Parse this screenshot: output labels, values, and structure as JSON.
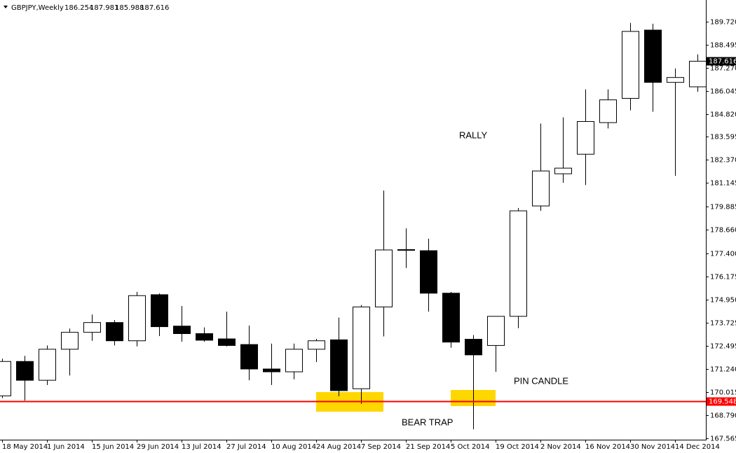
{
  "chart_data": {
    "type": "candlestick",
    "symbol": "GBPJPY,Weekly",
    "header_values": [
      186.254,
      187.981,
      185.988,
      187.616
    ],
    "categories": [
      "18 May 2014",
      null,
      "1 Jun 2014",
      null,
      "15 Jun 2014",
      null,
      "29 Jun 2014",
      null,
      "13 Jul 2014",
      null,
      "27 Jul 2014",
      null,
      "10 Aug 2014",
      null,
      "24 Aug 2014",
      null,
      "7 Sep 2014",
      null,
      "21 Sep 2014",
      null,
      "5 Oct 2014",
      null,
      "19 Oct 2014",
      null,
      "2 Nov 2014",
      null,
      "16 Nov 2014",
      null,
      "30 Nov 2014",
      null,
      "14 Dec 2014",
      null
    ],
    "open": [
      169.82,
      171.65,
      170.65,
      172.3,
      173.2,
      173.72,
      172.75,
      175.2,
      173.53,
      173.13,
      172.85,
      172.55,
      171.25,
      171.1,
      172.3,
      172.8,
      170.2,
      174.55,
      177.56,
      177.54,
      175.28,
      172.83,
      172.5,
      174.05,
      179.92,
      181.63,
      182.67,
      184.35,
      185.64,
      189.27,
      186.49,
      186.254
    ],
    "high": [
      171.8,
      171.95,
      172.5,
      173.4,
      174.15,
      173.85,
      175.35,
      175.27,
      174.6,
      173.46,
      174.3,
      173.56,
      172.6,
      172.6,
      172.85,
      173.98,
      174.65,
      180.74,
      178.73,
      178.18,
      175.35,
      173.05,
      174.05,
      179.81,
      184.3,
      184.63,
      186.12,
      186.12,
      189.65,
      189.61,
      187.23,
      187.981
    ],
    "low": [
      169.7,
      169.57,
      170.4,
      170.9,
      172.75,
      172.5,
      172.45,
      173.0,
      172.7,
      172.7,
      172.45,
      170.65,
      170.4,
      170.7,
      171.62,
      169.8,
      169.4,
      172.98,
      176.62,
      174.3,
      172.38,
      168.04,
      171.1,
      173.42,
      179.66,
      181.15,
      181.03,
      184.04,
      185.0,
      184.93,
      181.52,
      185.988
    ],
    "close": [
      171.65,
      170.65,
      172.3,
      173.2,
      173.72,
      172.75,
      175.15,
      173.5,
      173.13,
      172.78,
      172.5,
      171.25,
      171.1,
      172.3,
      172.75,
      170.1,
      174.55,
      177.58,
      177.6,
      175.28,
      172.68,
      172.0,
      174.05,
      179.66,
      181.78,
      181.93,
      184.41,
      185.56,
      189.2,
      186.49,
      186.75,
      187.616
    ],
    "up_color": "#ffffff",
    "down_color": "#000000",
    "ylim": [
      167.49,
      190.87
    ],
    "yticks": [
      {
        "value": 189.72,
        "label": "189.720"
      },
      188.495,
      {
        "value": 187.27,
        "label": "187.270"
      },
      186.045,
      {
        "value": 184.82,
        "label": "184.820"
      },
      183.595,
      {
        "value": 182.37,
        "label": "182.370"
      },
      181.145,
      179.885,
      {
        "value": 178.66,
        "label": "178.660"
      },
      {
        "value": 177.4,
        "label": "177.400"
      },
      176.175,
      {
        "value": 174.95,
        "label": "174.950"
      },
      173.725,
      172.495,
      {
        "value": 171.24,
        "label": "171.240"
      },
      170.015,
      {
        "value": 168.79,
        "label": "168.790"
      },
      167.565
    ],
    "level": {
      "value": 169.548,
      "color": "#ff0000"
    },
    "annotations": [
      "RALLY",
      "PIN CANDLE",
      "BEAR TRAP"
    ]
  }
}
